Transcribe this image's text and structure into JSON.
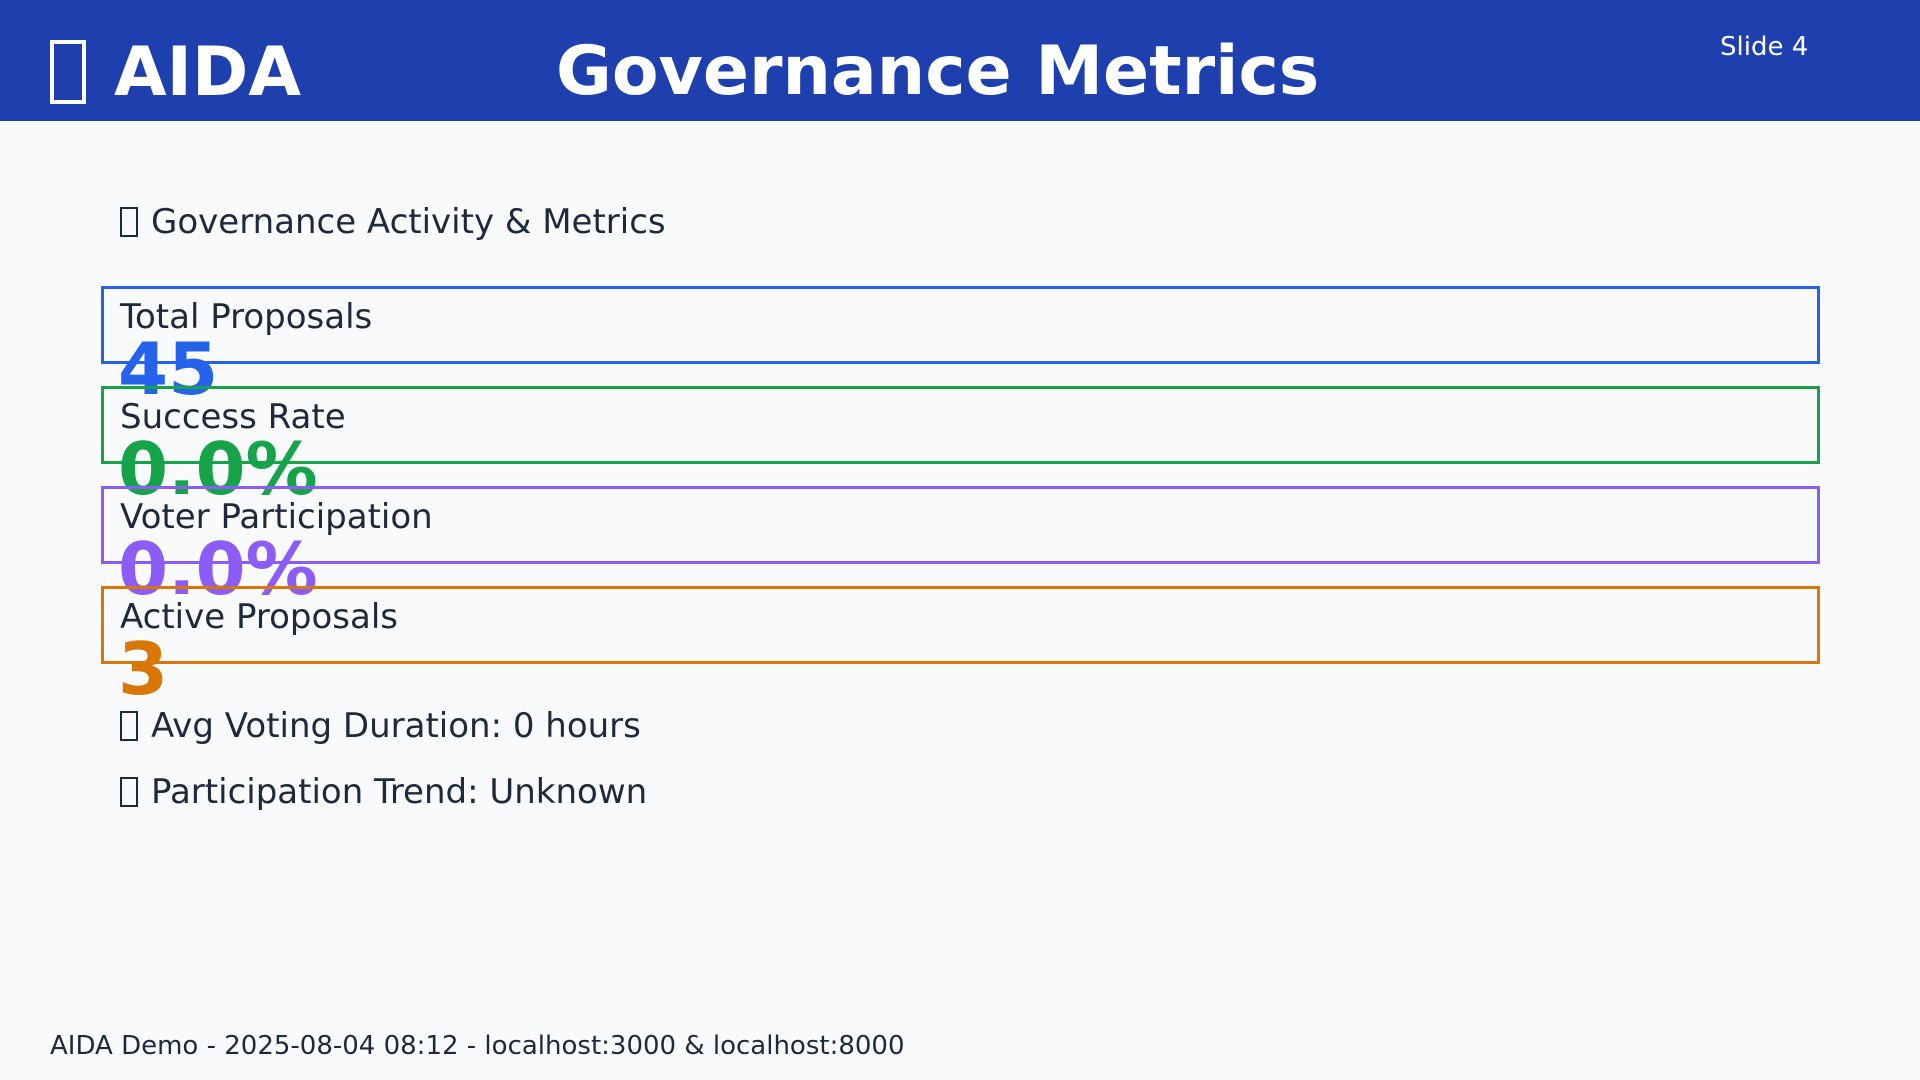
{
  "header": {
    "logo_text": "AIDA",
    "logo_icon": "emoji-glyph-icon",
    "title": "Governance Metrics",
    "slide_label": "Slide 4"
  },
  "section": {
    "icon": "emoji-glyph-icon",
    "title": "Governance Activity & Metrics"
  },
  "metrics": [
    {
      "label": "Total Proposals",
      "value": "45",
      "color": "#2563eb"
    },
    {
      "label": "Success Rate",
      "value": "0.0%",
      "color": "#16a34a"
    },
    {
      "label": "Voter Participation",
      "value": "0.0%",
      "color": "#8b5cf6"
    },
    {
      "label": "Active Proposals",
      "value": "3",
      "color": "#d97706"
    }
  ],
  "details": {
    "avg_voting_duration": "Avg Voting Duration: 0 hours",
    "participation_trend": "Participation Trend: Unknown"
  },
  "footer": {
    "text": "AIDA Demo - 2025-08-04 08:12 - localhost:3000 & localhost:8000"
  },
  "colors": {
    "header_bg": "#1e40af",
    "page_bg": "#f8fafc",
    "text": "#1e293b"
  }
}
